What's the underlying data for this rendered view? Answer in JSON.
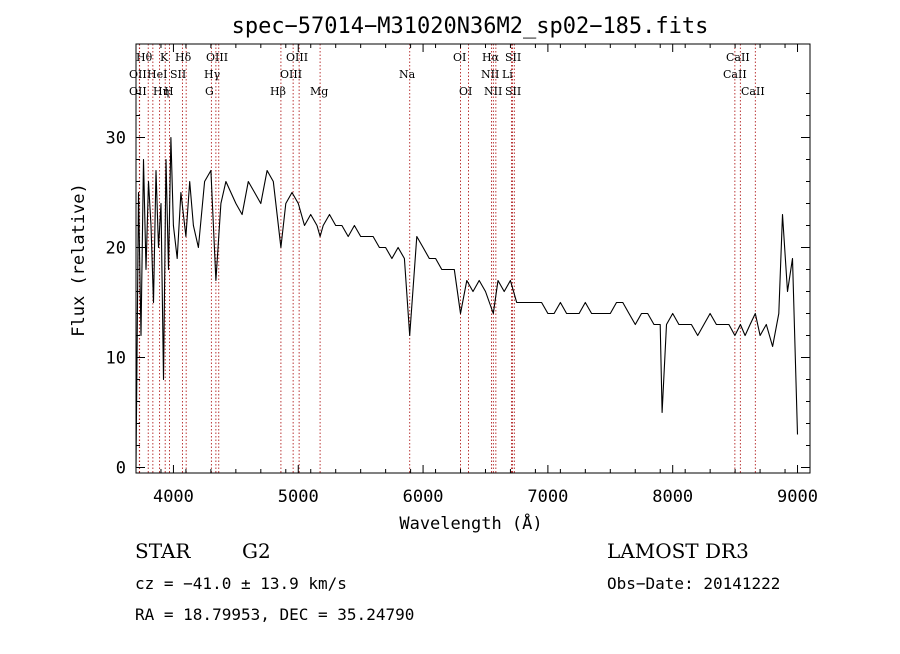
{
  "chart_data": {
    "type": "line",
    "title": "spec−57014−M31020N36M2_sp02−185.fits",
    "xlabel": "Wavelength (Å)",
    "ylabel": "Flux (relative)",
    "xlim": [
      3700,
      9100
    ],
    "ylim": [
      -0.5,
      38.5
    ],
    "xticks": [
      4000,
      5000,
      6000,
      7000,
      8000,
      9000
    ],
    "yticks": [
      0,
      10,
      20,
      30
    ],
    "series": [
      {
        "name": "spectrum",
        "x": [
          3700,
          3720,
          3740,
          3760,
          3780,
          3800,
          3820,
          3840,
          3860,
          3880,
          3900,
          3920,
          3940,
          3960,
          3980,
          4000,
          4030,
          4060,
          4100,
          4130,
          4160,
          4200,
          4250,
          4300,
          4340,
          4380,
          4420,
          4460,
          4500,
          4550,
          4600,
          4650,
          4700,
          4750,
          4800,
          4861,
          4900,
          4950,
          5000,
          5050,
          5100,
          5150,
          5175,
          5200,
          5250,
          5300,
          5350,
          5400,
          5450,
          5500,
          5550,
          5600,
          5650,
          5700,
          5750,
          5800,
          5850,
          5893,
          5950,
          6000,
          6050,
          6100,
          6150,
          6200,
          6250,
          6300,
          6350,
          6400,
          6450,
          6500,
          6563,
          6600,
          6650,
          6700,
          6750,
          6800,
          6850,
          6900,
          6950,
          7000,
          7050,
          7100,
          7150,
          7200,
          7250,
          7300,
          7350,
          7400,
          7450,
          7500,
          7550,
          7600,
          7650,
          7700,
          7750,
          7800,
          7850,
          7900,
          7915,
          7950,
          8000,
          8050,
          8100,
          8150,
          8200,
          8250,
          8300,
          8350,
          8400,
          8450,
          8498,
          8542,
          8580,
          8620,
          8662,
          8700,
          8750,
          8800,
          8850,
          8880,
          8920,
          8960,
          9000
        ],
        "y": [
          0,
          25,
          12,
          28,
          18,
          26,
          22,
          15,
          27,
          20,
          24,
          8,
          28,
          18,
          30,
          22,
          19,
          25,
          21,
          26,
          22,
          20,
          26,
          27,
          17,
          24,
          26,
          25,
          24,
          23,
          26,
          25,
          24,
          27,
          26,
          20,
          24,
          25,
          24,
          22,
          23,
          22,
          21,
          22,
          23,
          22,
          22,
          21,
          22,
          21,
          21,
          21,
          20,
          20,
          19,
          20,
          19,
          12,
          21,
          20,
          19,
          19,
          18,
          18,
          18,
          14,
          17,
          16,
          17,
          16,
          14,
          17,
          16,
          17,
          15,
          15,
          15,
          15,
          15,
          14,
          14,
          15,
          14,
          14,
          14,
          15,
          14,
          14,
          14,
          14,
          15,
          15,
          14,
          13,
          14,
          14,
          13,
          13,
          5,
          13,
          14,
          13,
          13,
          13,
          12,
          13,
          14,
          13,
          13,
          13,
          12,
          13,
          12,
          13,
          14,
          12,
          13,
          11,
          14,
          23,
          16,
          19,
          3
        ],
        "color": "#000000"
      }
    ],
    "lines": [
      {
        "name": "Hθ",
        "wavelength": 3798
      },
      {
        "name": "OII",
        "wavelength": 3727
      },
      {
        "name": "OII",
        "wavelength": 3729
      },
      {
        "name": "K",
        "wavelength": 3934
      },
      {
        "name": "HeI",
        "wavelength": 3889
      },
      {
        "name": "Hη",
        "wavelength": 3835
      },
      {
        "name": "H",
        "wavelength": 3968
      },
      {
        "name": "SII",
        "wavelength": 4072
      },
      {
        "name": "Hδ",
        "wavelength": 4102
      },
      {
        "name": "OIII",
        "wavelength": 4363
      },
      {
        "name": "Hγ",
        "wavelength": 4340
      },
      {
        "name": "G",
        "wavelength": 4304
      },
      {
        "name": "Hβ",
        "wavelength": 4861
      },
      {
        "name": "OIII",
        "wavelength": 5007
      },
      {
        "name": "OIII",
        "wavelength": 4959
      },
      {
        "name": "Mg",
        "wavelength": 5175
      },
      {
        "name": "Na",
        "wavelength": 5893
      },
      {
        "name": "OI",
        "wavelength": 6300
      },
      {
        "name": "OI",
        "wavelength": 6364
      },
      {
        "name": "Hα",
        "wavelength": 6563
      },
      {
        "name": "SII",
        "wavelength": 6716
      },
      {
        "name": "NII",
        "wavelength": 6548
      },
      {
        "name": "Li",
        "wavelength": 6708
      },
      {
        "name": "NII",
        "wavelength": 6583
      },
      {
        "name": "SII",
        "wavelength": 6731
      },
      {
        "name": "CaII",
        "wavelength": 8542
      },
      {
        "name": "CaII",
        "wavelength": 8498
      },
      {
        "name": "CaII",
        "wavelength": 8662
      }
    ],
    "line_label_rows": [
      [
        "Hθ",
        "K",
        "Hδ",
        "OIII",
        "OIII",
        "OI",
        "Hα",
        "SII",
        "CaII"
      ],
      [
        "OII",
        "HeI",
        "SII",
        "Hγ",
        "OIII",
        "Na",
        "NII",
        "Li",
        "CaII"
      ],
      [
        "OII",
        "Hη",
        "H",
        "G",
        "Hβ",
        "Mg",
        "OI",
        "NII",
        "SII",
        "CaII"
      ]
    ],
    "guide_color": "#b22222"
  },
  "info": {
    "object_class": "STAR",
    "subclass": "G2",
    "survey": "LAMOST DR3",
    "cz": "cz = −41.0 ± 13.9 km/s",
    "obs_date": "Obs−Date: 20141222",
    "coords": "RA =  18.79953, DEC =  35.24790"
  }
}
